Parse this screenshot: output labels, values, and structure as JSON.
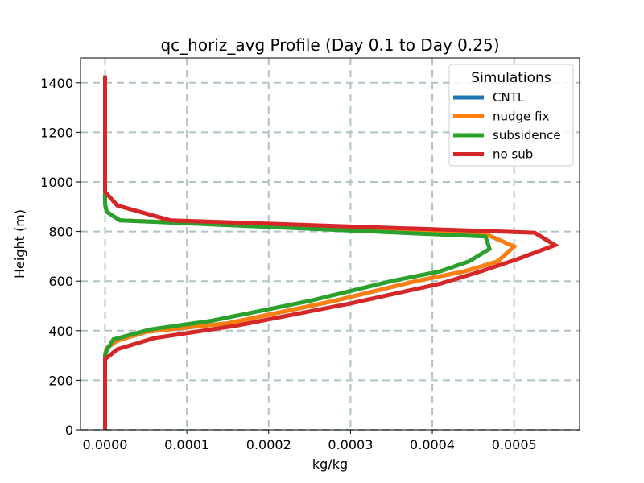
{
  "chart_data": {
    "type": "line",
    "title": "qc_horiz_avg Profile (Day 0.1 to Day 0.25)",
    "xlabel": "kg/kg",
    "ylabel": "Height (m)",
    "xlim": [
      -3e-05,
      0.00058
    ],
    "ylim": [
      0,
      1500
    ],
    "xticks": [
      0.0,
      0.0001,
      0.0002,
      0.0003,
      0.0004,
      0.0005
    ],
    "xtick_labels": [
      "0.0000",
      "0.0001",
      "0.0002",
      "0.0003",
      "0.0004",
      "0.0005"
    ],
    "yticks": [
      0,
      200,
      400,
      600,
      800,
      1000,
      1200,
      1400
    ],
    "ytick_labels": [
      "0",
      "200",
      "400",
      "600",
      "800",
      "1000",
      "1200",
      "1400"
    ],
    "grid": true,
    "legend": {
      "title": "Simulations",
      "position": "upper right"
    },
    "series": [
      {
        "name": "CNTL",
        "color": "#1f77b4",
        "x": [
          0,
          0,
          0,
          0,
          2e-06,
          1.5e-05,
          5e-05,
          0.00015,
          0.00028,
          0.00038,
          0.00044,
          0.00048,
          0.0005,
          0.000465,
          1.8e-05,
          2e-06,
          0,
          0,
          0,
          0,
          0
        ],
        "y": [
          0,
          100,
          200,
          300,
          330,
          360,
          395,
          430,
          520,
          600,
          640,
          680,
          740,
          790,
          845,
          880,
          910,
          950,
          1100,
          1300,
          1420
        ]
      },
      {
        "name": "nudge fix",
        "color": "#ff7f0e",
        "x": [
          0,
          0,
          0,
          0,
          2e-06,
          1.5e-05,
          5e-05,
          0.00015,
          0.00028,
          0.00038,
          0.00044,
          0.00048,
          0.0005,
          0.000465,
          1.8e-05,
          2e-06,
          0,
          0,
          0,
          0,
          0
        ],
        "y": [
          0,
          100,
          200,
          300,
          330,
          360,
          395,
          430,
          520,
          600,
          640,
          680,
          740,
          790,
          845,
          880,
          910,
          950,
          1100,
          1300,
          1420
        ]
      },
      {
        "name": "subsidence",
        "color": "#2ca02c",
        "x": [
          0,
          0,
          0,
          0,
          2e-06,
          1e-05,
          5.5e-05,
          0.00013,
          0.00025,
          0.00035,
          0.00041,
          0.000445,
          0.00047,
          0.000465,
          1.8e-05,
          2e-06,
          0,
          0,
          0,
          0,
          0
        ],
        "y": [
          0,
          100,
          200,
          300,
          320,
          365,
          405,
          440,
          520,
          600,
          640,
          680,
          730,
          780,
          845,
          880,
          910,
          950,
          1100,
          1300,
          1420
        ]
      },
      {
        "name": "no sub",
        "color": "#d62728",
        "x": [
          0,
          0,
          0,
          0,
          1.5e-05,
          6e-05,
          0.00016,
          0.0003,
          0.00041,
          0.00046,
          0.000505,
          0.00055,
          0.000525,
          8e-05,
          1.5e-05,
          0,
          0,
          0,
          0
        ],
        "y": [
          0,
          100,
          200,
          285,
          325,
          370,
          420,
          510,
          590,
          640,
          690,
          745,
          795,
          845,
          905,
          960,
          1100,
          1300,
          1430
        ]
      }
    ]
  }
}
